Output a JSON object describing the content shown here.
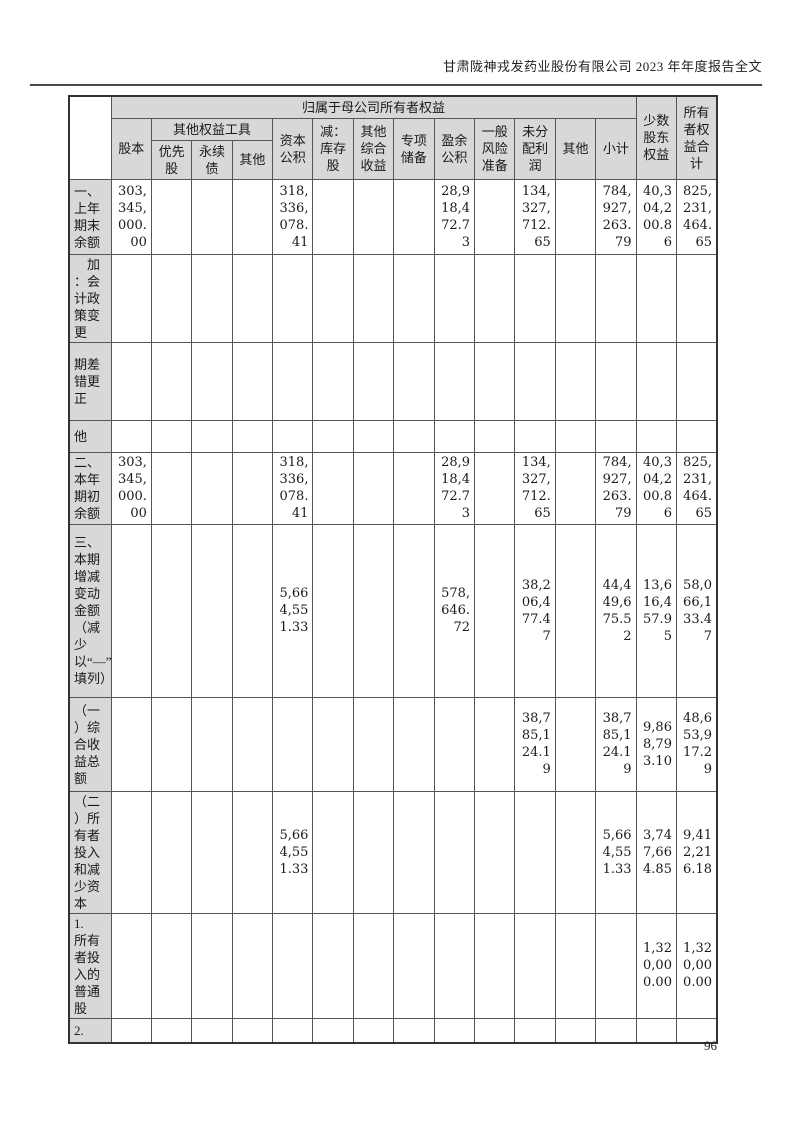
{
  "page": {
    "header_title": "甘肃陇神戎发药业股份有限公司 2023 年年度报告全文",
    "page_number": "96"
  },
  "colors": {
    "header_fill": "#d8d8d8",
    "label_fill": "#d8d8d8",
    "border": "#555555"
  },
  "table": {
    "header": {
      "parent_group": "归属于母公司所有者权益",
      "other_equity_group": "其他权益工具",
      "cols": {
        "share_capital": "股本",
        "preferred_stock": "优先股",
        "perpetual_bond": "永续债",
        "other_instrument": "其他",
        "capital_reserve": "资本公积",
        "less_treasury_stock": "减：库存股",
        "other_comprehensive_income": "其他综合收益",
        "special_reserve": "专项储备",
        "surplus_reserve": "盈余公积",
        "general_risk_reserve": "一般风险准备",
        "undistributed_profit": "未分配利润",
        "other": "其他",
        "subtotal": "小计",
        "minority_interest": "少数股东权益",
        "total_owners_equity": "所有者权益合计"
      }
    },
    "rows": [
      {
        "label": "一、上年期末余额",
        "cells": [
          "303,345,000.00",
          "",
          "",
          "",
          "318,336,078.41",
          "",
          "",
          "",
          "28,918,472.73",
          "",
          "134,327,712.65",
          "",
          "784,927,263.79",
          "40,304,200.86",
          "825,231,464.65"
        ]
      },
      {
        "label": "　加\n：会计政策变更",
        "cells": [
          "",
          "",
          "",
          "",
          "",
          "",
          "",
          "",
          "",
          "",
          "",
          "",
          "",
          "",
          ""
        ]
      },
      {
        "label": "期差错更正",
        "cells": [
          "",
          "",
          "",
          "",
          "",
          "",
          "",
          "",
          "",
          "",
          "",
          "",
          "",
          "",
          ""
        ]
      },
      {
        "label": "他",
        "cells": [
          "",
          "",
          "",
          "",
          "",
          "",
          "",
          "",
          "",
          "",
          "",
          "",
          "",
          "",
          ""
        ]
      },
      {
        "label": "二、本年期初余额",
        "cells": [
          "303,345,000.00",
          "",
          "",
          "",
          "318,336,078.41",
          "",
          "",
          "",
          "28,918,472.73",
          "",
          "134,327,712.65",
          "",
          "784,927,263.79",
          "40,304,200.86",
          "825,231,464.65"
        ]
      },
      {
        "label": "三、本期增减变动金额（减少以“—”号填列）",
        "cells": [
          "",
          "",
          "",
          "",
          "5,664,551.33",
          "",
          "",
          "",
          "578,646.72",
          "",
          "38,206,477.47",
          "",
          "44,449,675.52",
          "13,616,457.95",
          "58,066,133.47"
        ]
      },
      {
        "label": "（一\n）综合收益总额",
        "cells": [
          "",
          "",
          "",
          "",
          "",
          "",
          "",
          "",
          "",
          "",
          "38,785,124.19",
          "",
          "38,785,124.19",
          "9,868,793.10",
          "48,653,917.29"
        ]
      },
      {
        "label": "（二\n）所有者投入和减少资本",
        "cells": [
          "",
          "",
          "",
          "",
          "5,664,551.33",
          "",
          "",
          "",
          "",
          "",
          "",
          "",
          "5,664,551.33",
          "3,747,664.85",
          "9,412,216.18"
        ]
      },
      {
        "label": "1.\n所有者投入的普通股",
        "cells": [
          "",
          "",
          "",
          "",
          "",
          "",
          "",
          "",
          "",
          "",
          "",
          "",
          "",
          "1,320,000.00",
          "1,320,000.00"
        ]
      },
      {
        "label": "2.",
        "cells": [
          "",
          "",
          "",
          "",
          "",
          "",
          "",
          "",
          "",
          "",
          "",
          "",
          "",
          "",
          ""
        ]
      }
    ]
  }
}
